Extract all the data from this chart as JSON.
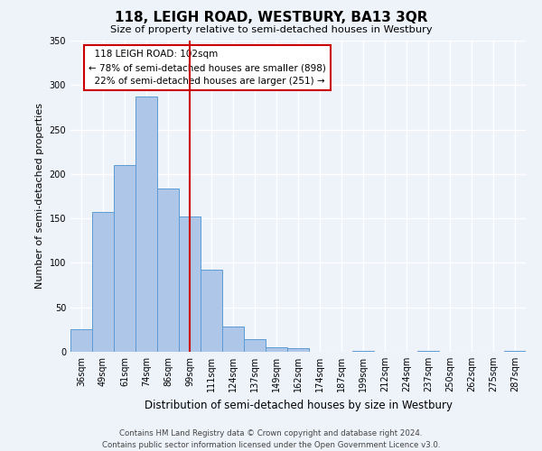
{
  "title": "118, LEIGH ROAD, WESTBURY, BA13 3QR",
  "subtitle": "Size of property relative to semi-detached houses in Westbury",
  "xlabel": "Distribution of semi-detached houses by size in Westbury",
  "ylabel": "Number of semi-detached properties",
  "bar_labels": [
    "36sqm",
    "49sqm",
    "61sqm",
    "74sqm",
    "86sqm",
    "99sqm",
    "111sqm",
    "124sqm",
    "137sqm",
    "149sqm",
    "162sqm",
    "174sqm",
    "187sqm",
    "199sqm",
    "212sqm",
    "224sqm",
    "237sqm",
    "250sqm",
    "262sqm",
    "275sqm",
    "287sqm"
  ],
  "bar_heights": [
    25,
    157,
    210,
    287,
    184,
    152,
    92,
    28,
    14,
    5,
    4,
    0,
    0,
    1,
    0,
    0,
    1,
    0,
    0,
    0,
    1
  ],
  "bar_color": "#aec6e8",
  "bar_edge_color": "#5b9bd5",
  "property_line_x": 5.0,
  "pct_smaller": 78,
  "pct_smaller_count": 898,
  "pct_larger": 22,
  "pct_larger_count": 251,
  "ylim": [
    0,
    350
  ],
  "yticks": [
    0,
    50,
    100,
    150,
    200,
    250,
    300,
    350
  ],
  "background_color": "#eef2f9",
  "grid_color": "#ffffff",
  "annotation_box_color": "#ffffff",
  "annotation_box_edge": "#cc0000",
  "red_line_color": "#cc0000",
  "footer1": "Contains HM Land Registry data © Crown copyright and database right 2024.",
  "footer2": "Contains public sector information licensed under the Open Government Licence v3.0."
}
